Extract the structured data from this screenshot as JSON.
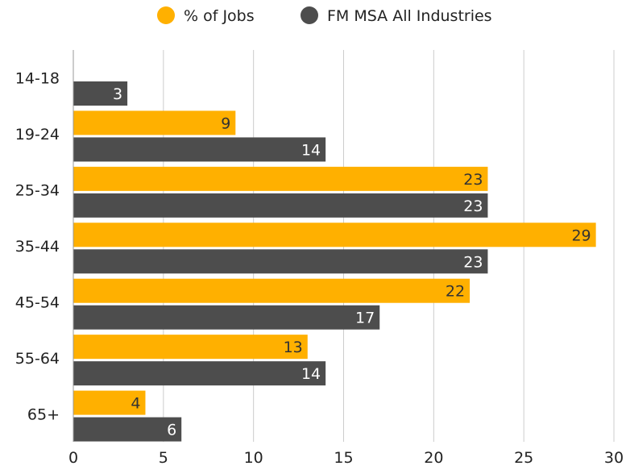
{
  "chart_data": {
    "type": "bar",
    "orientation": "horizontal",
    "categories": [
      "14-18",
      "19-24",
      "25-34",
      "35-44",
      "45-54",
      "55-64",
      "65+"
    ],
    "series": [
      {
        "name": "% of Jobs",
        "color": "#FFB000",
        "label_color": "#333333",
        "values": [
          null,
          9,
          23,
          29,
          22,
          13,
          4
        ]
      },
      {
        "name": "FM MSA All Industries",
        "color": "#4D4D4D",
        "label_color": "#ffffff",
        "values": [
          3,
          14,
          23,
          23,
          17,
          14,
          6
        ]
      }
    ],
    "xlim": [
      0,
      30
    ],
    "x_ticks": [
      0,
      5,
      10,
      15,
      20,
      25,
      30
    ],
    "grid": "vertical",
    "legend_position": "top-center",
    "title": "",
    "xlabel": "",
    "ylabel": ""
  }
}
